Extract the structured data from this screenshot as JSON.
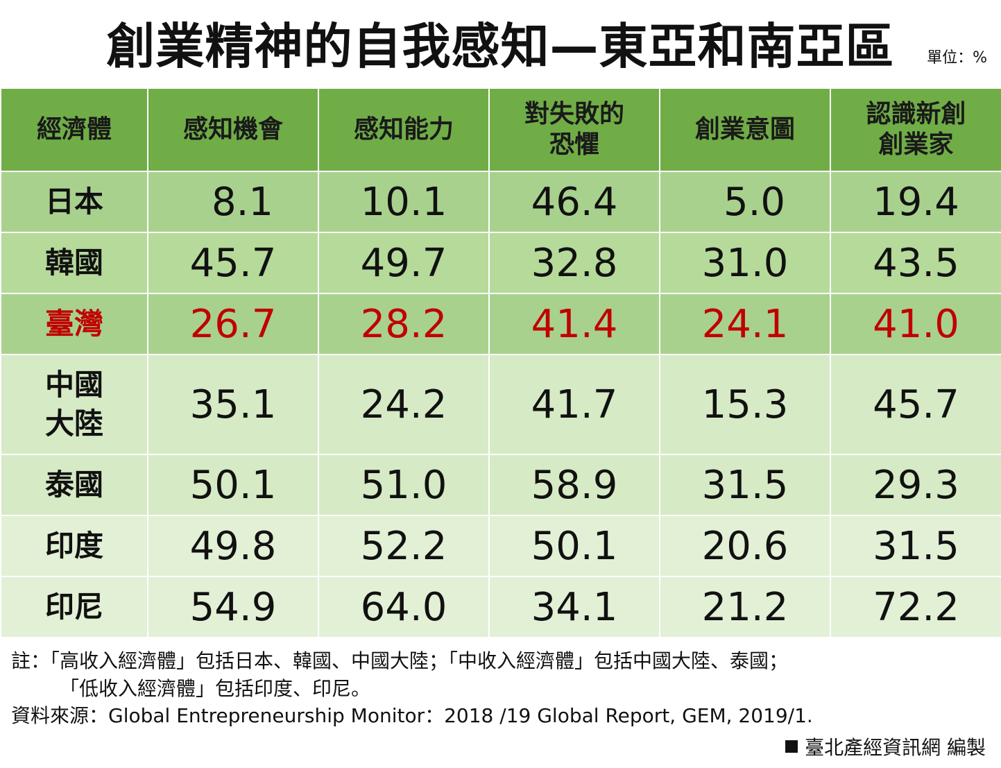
{
  "title": "創業精神的自我感知—東亞和南亞區",
  "unit": "單位：%",
  "chart_data": {
    "type": "table",
    "columns": [
      "經濟體",
      "感知機會",
      "感知能力",
      "對失敗的恐懼",
      "創業意圖",
      "認識新創創業家"
    ],
    "header_lines": [
      [
        "經濟體"
      ],
      [
        "感知機會"
      ],
      [
        "感知能力"
      ],
      [
        "對失敗的",
        "恐懼"
      ],
      [
        "創業意圖"
      ],
      [
        "認識新創",
        "創業家"
      ]
    ],
    "rows": [
      {
        "name_lines": [
          "日本"
        ],
        "values": [
          "8.1",
          "10.1",
          "46.4",
          "5.0",
          "19.4"
        ],
        "highlight": false
      },
      {
        "name_lines": [
          "韓國"
        ],
        "values": [
          "45.7",
          "49.7",
          "32.8",
          "31.0",
          "43.5"
        ],
        "highlight": false
      },
      {
        "name_lines": [
          "臺灣"
        ],
        "values": [
          "26.7",
          "28.2",
          "41.4",
          "24.1",
          "41.0"
        ],
        "highlight": true
      },
      {
        "name_lines": [
          "中國",
          "大陸"
        ],
        "values": [
          "35.1",
          "24.2",
          "41.7",
          "15.3",
          "45.7"
        ],
        "highlight": false
      },
      {
        "name_lines": [
          "泰國"
        ],
        "values": [
          "50.1",
          "51.0",
          "58.9",
          "31.5",
          "29.3"
        ],
        "highlight": false
      },
      {
        "name_lines": [
          "印度"
        ],
        "values": [
          "49.8",
          "52.2",
          "50.1",
          "20.6",
          "31.5"
        ],
        "highlight": false
      },
      {
        "name_lines": [
          "印尼"
        ],
        "values": [
          "54.9",
          "64.0",
          "34.1",
          "21.2",
          "72.2"
        ],
        "highlight": false
      }
    ],
    "highlight_color": "#c00000",
    "header_color": "#70ad47"
  },
  "notes": {
    "line1": "註：「高收入經濟體」包括日本、韓國、中國大陸；「中收入經濟體」包括中國大陸、泰國；",
    "line2": "「低收入經濟體」包括印度、印尼。"
  },
  "source": "資料來源：Global Entrepreneurship Monitor：2018 /19 Global Report, GEM, 2019/1.",
  "credit": "臺北產經資訊網  編製"
}
